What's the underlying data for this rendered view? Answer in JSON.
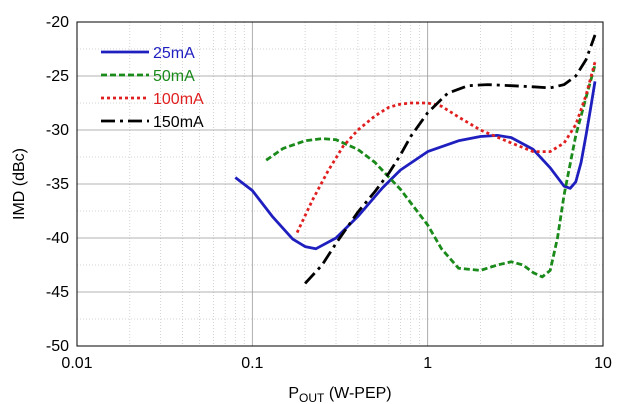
{
  "chart_data": {
    "type": "line",
    "xscale": "log",
    "xlim": [
      0.01,
      10
    ],
    "ylim": [
      -50,
      -20
    ],
    "xticks": [
      0.01,
      0.1,
      1,
      10
    ],
    "xtick_labels": [
      "0.01",
      "0.1",
      "1",
      "10"
    ],
    "yticks": [
      -50,
      -45,
      -40,
      -35,
      -30,
      -25,
      -20
    ],
    "ytick_labels": [
      "-50",
      "-45",
      "-40",
      "-35",
      "-30",
      "-25",
      "-20"
    ],
    "xlabel_main": "P",
    "xlabel_sub": "OUT",
    "xlabel_rest": " (W-PEP)",
    "ylabel": "IMD (dBc)",
    "grid": true,
    "legend_position": "top-left",
    "series": [
      {
        "name": "25mA",
        "color": "#1f1fbf",
        "style": "solid",
        "x": [
          0.08,
          0.1,
          0.13,
          0.17,
          0.2,
          0.23,
          0.3,
          0.4,
          0.55,
          0.7,
          1.0,
          1.5,
          2.0,
          2.5,
          3.0,
          4.0,
          5.0,
          6.0,
          6.5,
          7.0,
          7.5,
          8.0,
          8.5,
          9.0
        ],
        "y": [
          -34.4,
          -35.6,
          -38.0,
          -40.1,
          -40.8,
          -41.0,
          -40.0,
          -38.0,
          -35.4,
          -33.7,
          -32.0,
          -31.0,
          -30.6,
          -30.5,
          -30.7,
          -31.8,
          -33.5,
          -35.2,
          -35.4,
          -34.8,
          -33.0,
          -30.5,
          -28.0,
          -25.5
        ]
      },
      {
        "name": "50mA",
        "color": "#1a8a1a",
        "style": "dashed",
        "x": [
          0.12,
          0.15,
          0.2,
          0.25,
          0.3,
          0.4,
          0.5,
          0.7,
          1.0,
          1.2,
          1.5,
          2.0,
          2.5,
          3.0,
          3.5,
          4.0,
          4.5,
          5.0,
          5.5,
          6.0,
          7.0,
          8.0,
          9.0
        ],
        "y": [
          -32.8,
          -31.7,
          -31.0,
          -30.8,
          -30.9,
          -31.8,
          -33.0,
          -35.5,
          -38.8,
          -41.0,
          -42.8,
          -43.0,
          -42.5,
          -42.2,
          -42.5,
          -43.2,
          -43.6,
          -43.0,
          -40.0,
          -36.0,
          -30.5,
          -27.0,
          -24.0
        ]
      },
      {
        "name": "100mA",
        "color": "#e02020",
        "style": "dotted",
        "x": [
          0.18,
          0.22,
          0.27,
          0.33,
          0.4,
          0.5,
          0.6,
          0.7,
          0.8,
          1.0,
          1.2,
          1.5,
          2.0,
          3.0,
          4.0,
          5.0,
          6.0,
          7.0,
          8.0,
          9.0
        ],
        "y": [
          -39.5,
          -36.5,
          -33.8,
          -31.5,
          -30.0,
          -28.7,
          -27.9,
          -27.6,
          -27.5,
          -27.5,
          -27.8,
          -28.8,
          -30.0,
          -31.2,
          -32.0,
          -32.0,
          -31.2,
          -29.5,
          -26.8,
          -23.7
        ]
      },
      {
        "name": "150mA",
        "color": "#000000",
        "style": "dashdot",
        "x": [
          0.2,
          0.25,
          0.3,
          0.4,
          0.5,
          0.6,
          0.7,
          0.8,
          1.0,
          1.3,
          1.7,
          2.2,
          3.0,
          4.0,
          5.0,
          6.0,
          7.0,
          8.0,
          9.0
        ],
        "y": [
          -44.2,
          -42.5,
          -40.5,
          -37.6,
          -35.7,
          -34.0,
          -32.3,
          -30.6,
          -28.4,
          -26.6,
          -25.9,
          -25.8,
          -25.9,
          -26.0,
          -26.1,
          -25.8,
          -25.0,
          -23.5,
          -21.2
        ]
      }
    ]
  }
}
